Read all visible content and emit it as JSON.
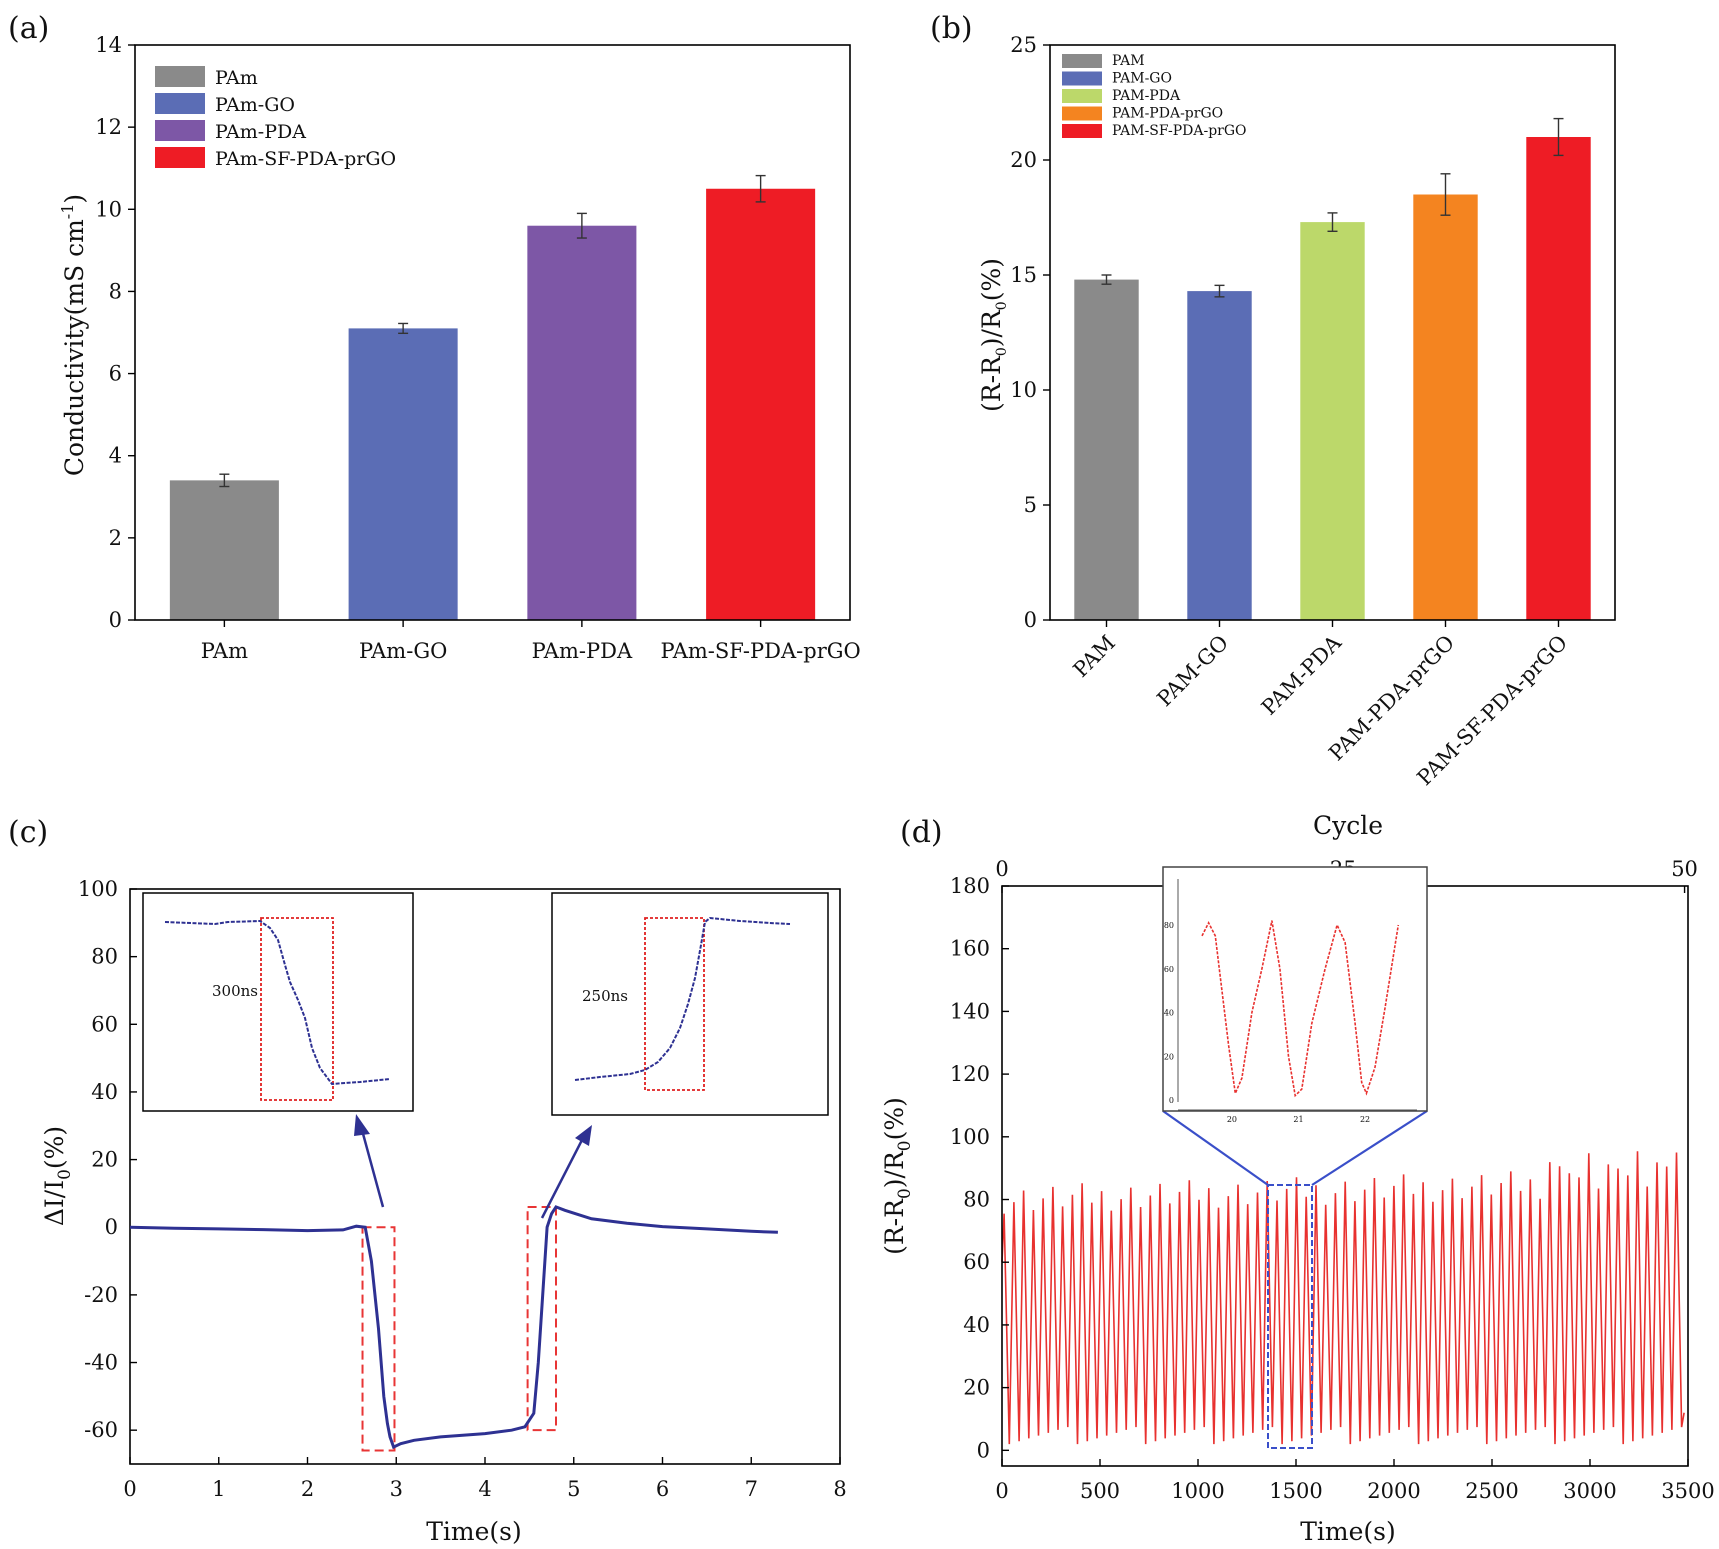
{
  "chart_data": [
    {
      "panel": "(a)",
      "type": "bar",
      "categories": [
        "PAm",
        "PAm-GO",
        "PAm-PDA",
        "PAm-SF-PDA-prGO"
      ],
      "values": [
        3.4,
        7.1,
        9.6,
        10.5
      ],
      "errors": [
        0.15,
        0.12,
        0.3,
        0.32
      ],
      "colors": [
        "#8a8a8a",
        "#5b6db5",
        "#7d57a6",
        "#ee1c25"
      ],
      "legend": [
        "PAm",
        "PAm-GO",
        "PAm-PDA",
        "PAm-SF-PDA-prGO"
      ],
      "legend_position": "top-left",
      "xlabel": "",
      "ylabel_main": "Conductivity(mS cm",
      "ylabel_sup": "-1",
      "ylabel_close": ")",
      "ylim": [
        0,
        14
      ],
      "yticks": [
        "0",
        "2",
        "4",
        "6",
        "8",
        "10",
        "12",
        "14"
      ]
    },
    {
      "panel": "(b)",
      "type": "bar",
      "categories": [
        "PAM",
        "PAM-GO",
        "PAM-PDA",
        "PAM-PDA-prGO",
        "PAM-SF-PDA-prGO"
      ],
      "values": [
        14.8,
        14.3,
        17.3,
        18.5,
        21.0
      ],
      "errors": [
        0.2,
        0.25,
        0.4,
        0.9,
        0.8
      ],
      "colors": [
        "#8a8a8a",
        "#5b6db5",
        "#bcd86a",
        "#f48420",
        "#ee1c25"
      ],
      "legend": [
        "PAM",
        "PAM-GO",
        "PAM-PDA",
        "PAM-PDA-prGO",
        "PAM-SF-PDA-prGO"
      ],
      "legend_position": "top-left",
      "ylabel_parts": [
        "(R-R",
        "0",
        ")/R",
        "0",
        "(%)"
      ],
      "ylim": [
        0,
        25
      ],
      "yticks": [
        "0",
        "5",
        "10",
        "15",
        "20",
        "25"
      ]
    },
    {
      "panel": "(c)",
      "type": "line",
      "series": [
        {
          "name": "ΔI/I0",
          "color": "#2e3192",
          "x": [
            0,
            0.5,
            1,
            1.5,
            2,
            2.4,
            2.55,
            2.65,
            2.72,
            2.8,
            2.86,
            2.9,
            2.93,
            2.97,
            3.05,
            3.2,
            3.5,
            4.0,
            4.3,
            4.45,
            4.55,
            4.6,
            4.65,
            4.7,
            4.75,
            4.8,
            4.9,
            5.2,
            5.6,
            6.0,
            6.5,
            7.0,
            7.3
          ],
          "y": [
            0,
            -0.3,
            -0.5,
            -0.7,
            -1.0,
            -0.8,
            0.3,
            0,
            -10,
            -30,
            -50,
            -58,
            -62,
            -65,
            -64,
            -63,
            -62,
            -61,
            -60,
            -59,
            -55,
            -40,
            -20,
            0,
            4,
            6,
            5,
            2.5,
            1.2,
            0.2,
            -0.5,
            -1.2,
            -1.5
          ]
        }
      ],
      "xlabel": "Time(s)",
      "ylabel_parts": [
        "ΔI/I",
        "0",
        "(%)"
      ],
      "xlim": [
        0,
        8
      ],
      "ylim": [
        -70,
        100
      ],
      "xticks": [
        "0",
        "1",
        "2",
        "3",
        "4",
        "5",
        "6",
        "7",
        "8"
      ],
      "yticks": [
        "-60",
        "-40",
        "-20",
        "0",
        "20",
        "40",
        "60",
        "80",
        "100"
      ],
      "annotations": [
        {
          "label": "300ns",
          "inset": "left",
          "box_x": [
            2.62,
            2.98
          ],
          "box_y": [
            -66,
            0
          ]
        },
        {
          "label": "250ns",
          "inset": "right",
          "box_x": [
            4.48,
            4.8
          ],
          "box_y": [
            -60,
            6
          ]
        }
      ]
    },
    {
      "panel": "(d)",
      "type": "line",
      "series": [
        {
          "name": "(R-R0)/R0",
          "color": "#e8312f",
          "cycles": 70,
          "duration": 3480
        }
      ],
      "xlabel": "Time(s)",
      "top_xlabel": "Cycle",
      "ylabel_parts": [
        "(R-R",
        "0",
        ")/R",
        "0",
        "(%)"
      ],
      "xlim": [
        0,
        3500
      ],
      "ylim": [
        -5,
        180
      ],
      "xticks": [
        "0",
        "500",
        "1000",
        "1500",
        "2000",
        "2500",
        "3000",
        "3500"
      ],
      "yticks": [
        "0",
        "20",
        "40",
        "60",
        "80",
        "100",
        "120",
        "140",
        "160",
        "180"
      ],
      "top_ticks": [
        "0",
        "25",
        "50"
      ],
      "inset_yticks": [
        "0",
        "20",
        "40",
        "60",
        "80"
      ],
      "inset_xticks": [
        "20",
        "21",
        "22"
      ]
    }
  ]
}
